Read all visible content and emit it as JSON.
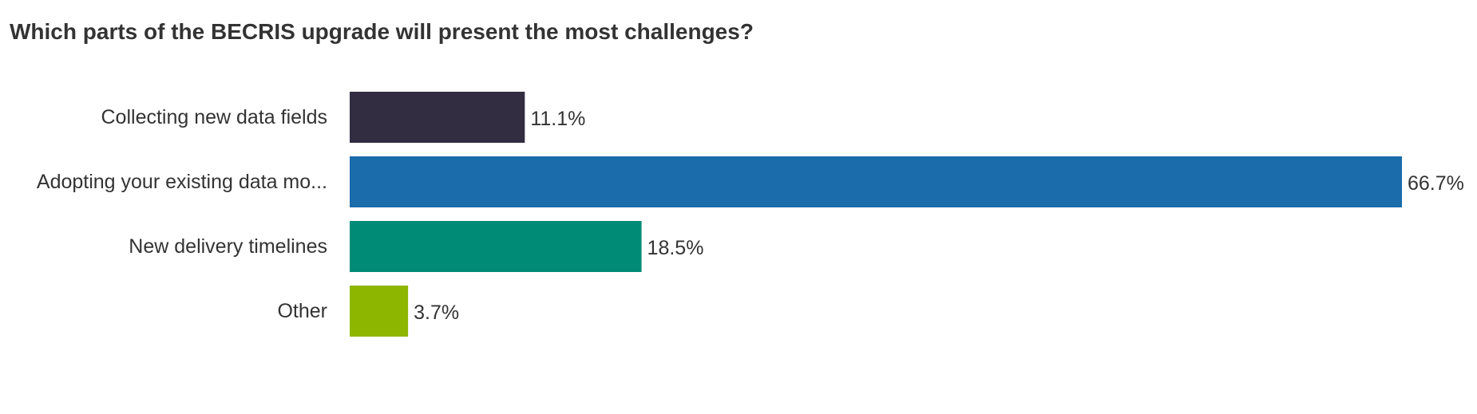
{
  "chart_data": {
    "type": "bar",
    "orientation": "horizontal",
    "title": "Which parts of the BECRIS upgrade will present the most challenges?",
    "xlabel": "",
    "ylabel": "",
    "xlim": [
      0,
      66.7
    ],
    "grid": false,
    "legend": "none",
    "categories": [
      "Collecting new data fields",
      "Adopting your existing data mo...",
      "New delivery timelines",
      "Other"
    ],
    "values": [
      11.1,
      66.7,
      18.5,
      3.7
    ],
    "value_labels": [
      "11.1%",
      "66.7%",
      "18.5%",
      "3.7%"
    ],
    "colors": [
      "#332D42",
      "#1B6CAB",
      "#008B76",
      "#8DB600"
    ]
  }
}
